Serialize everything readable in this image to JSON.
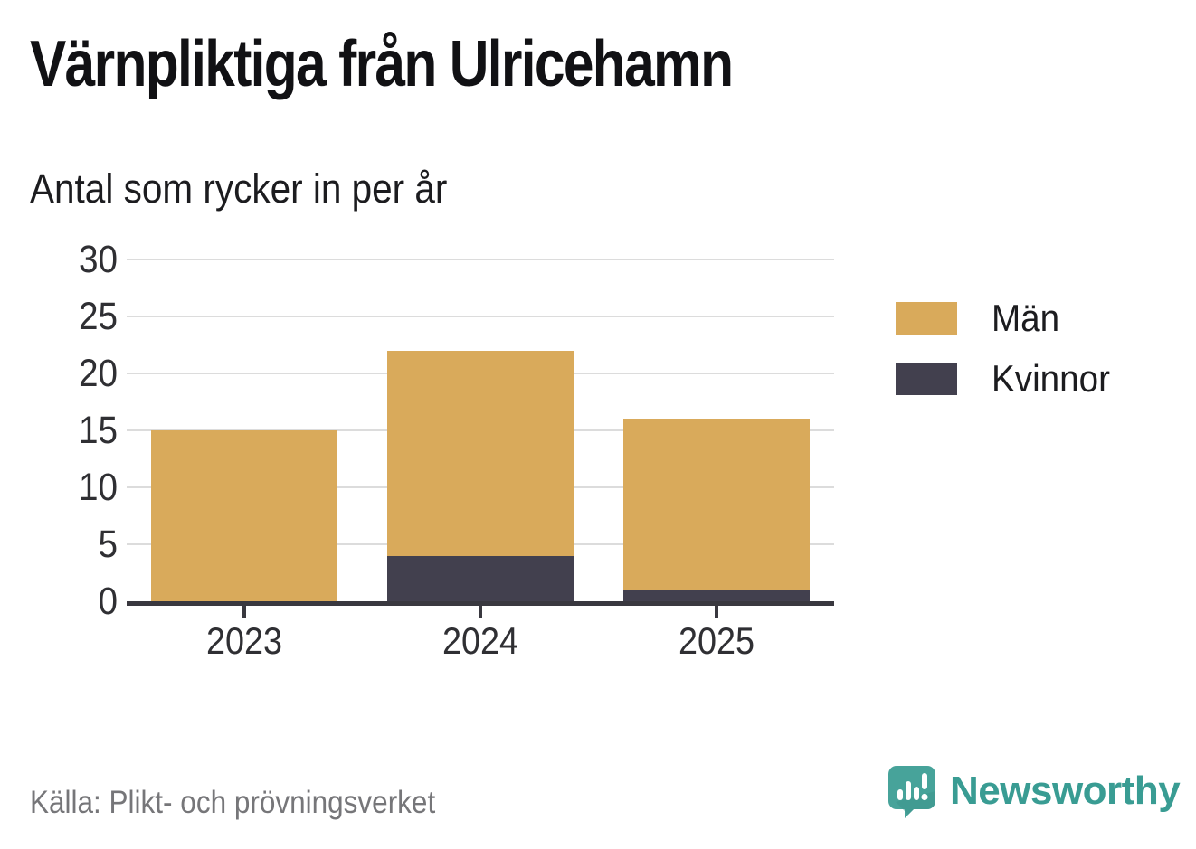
{
  "title": "Värnpliktiga från Ulricehamn",
  "subtitle": "Antal som rycker in per år",
  "source": "Källa: Plikt- och prövningsverket",
  "brand": {
    "name": "Newsworthy",
    "icon": "speech-bubble-bar-chart-icon",
    "icon_color": "#47a39a",
    "text_color": "#399c93"
  },
  "colors": {
    "men": "#d9aa5b",
    "women": "#42404e",
    "axis": "#39383f",
    "gridline": "#dcdcdc",
    "label_text": "#2f2f33",
    "muted_text": "#767679"
  },
  "legend": {
    "items": [
      {
        "label": "Män",
        "color": "#d9aa5b"
      },
      {
        "label": "Kvinnor",
        "color": "#42404e"
      }
    ]
  },
  "chart_data": {
    "type": "bar",
    "stacked": true,
    "title": "Värnpliktiga från Ulricehamn",
    "subtitle": "Antal som rycker in per år",
    "categories": [
      "2023",
      "2024",
      "2025"
    ],
    "series": [
      {
        "name": "Kvinnor",
        "color": "#42404e",
        "values": [
          0,
          4,
          1
        ]
      },
      {
        "name": "Män",
        "color": "#d9aa5b",
        "values": [
          15,
          18,
          15
        ]
      }
    ],
    "stack_totals": [
      15,
      22,
      16
    ],
    "xlabel": "",
    "ylabel": "",
    "ylim": [
      0,
      30
    ],
    "yticks": [
      0,
      5,
      10,
      15,
      20,
      25,
      30
    ],
    "grid": true,
    "legend_position": "right",
    "legend_order": [
      "Män",
      "Kvinnor"
    ]
  }
}
